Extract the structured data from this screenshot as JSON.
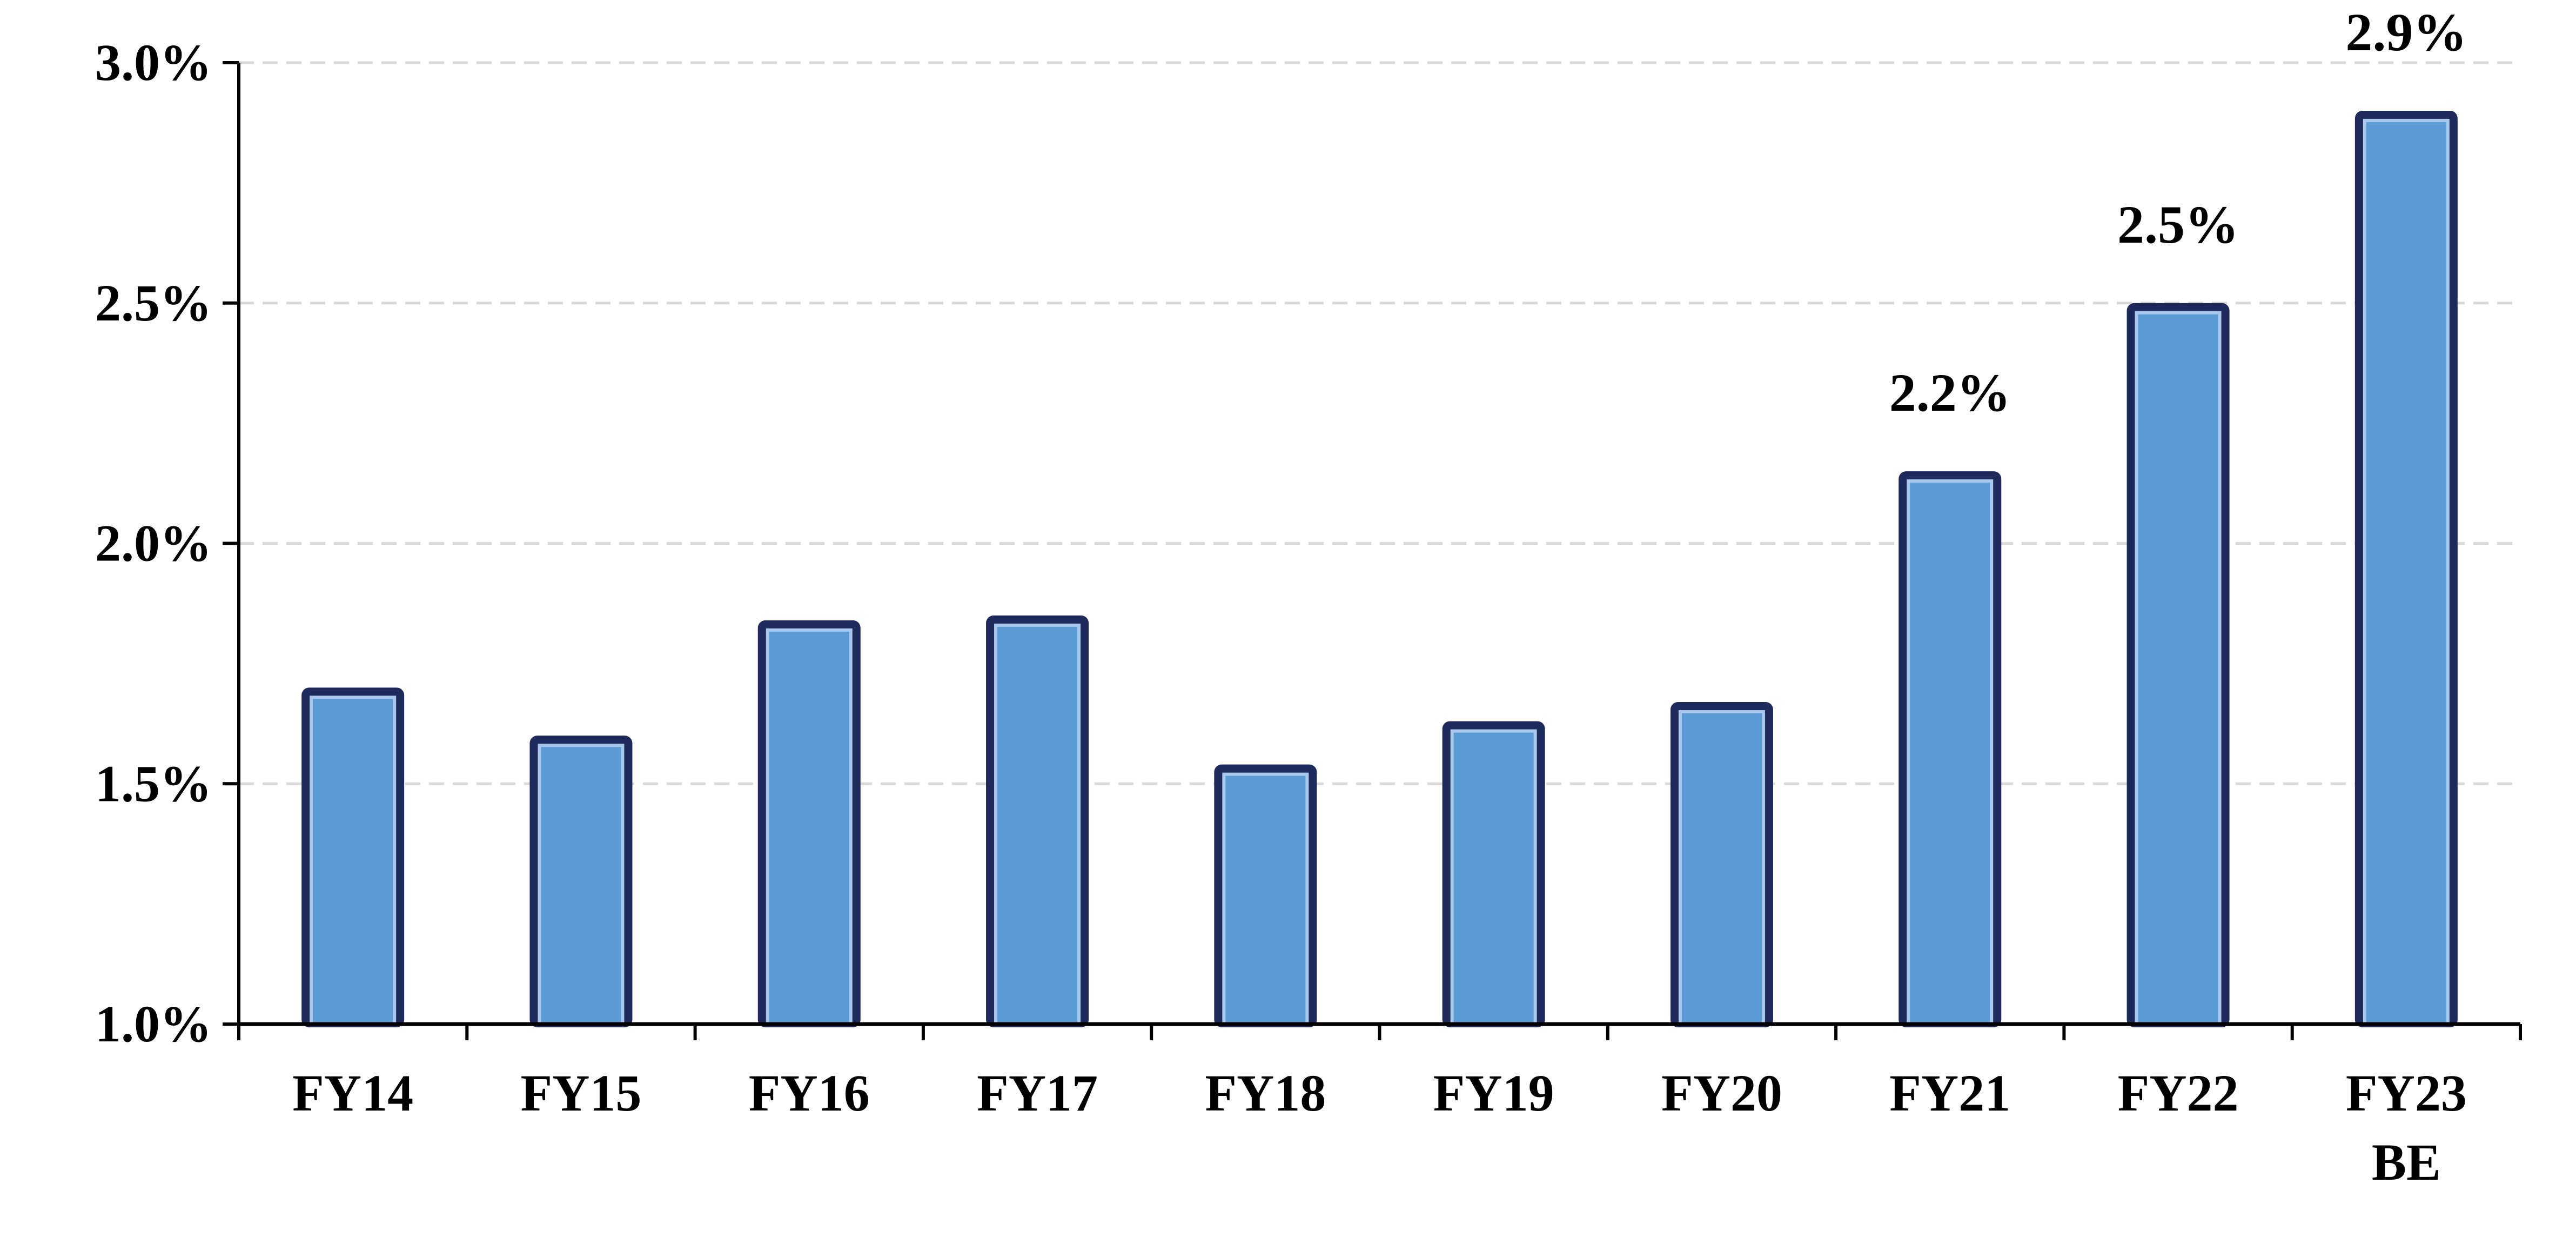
{
  "chart_data": {
    "type": "bar",
    "categories": [
      "FY14",
      "FY15",
      "FY16",
      "FY17",
      "FY18",
      "FY19",
      "FY20",
      "FY21",
      "FY22",
      "FY23 BE"
    ],
    "category_lines": [
      [
        "FY14"
      ],
      [
        "FY15"
      ],
      [
        "FY16"
      ],
      [
        "FY17"
      ],
      [
        "FY18"
      ],
      [
        "FY19"
      ],
      [
        "FY20"
      ],
      [
        "FY21"
      ],
      [
        "FY22"
      ],
      [
        "FY23",
        "BE"
      ]
    ],
    "values": [
      1.7,
      1.6,
      1.84,
      1.85,
      1.54,
      1.63,
      1.67,
      2.15,
      2.5,
      2.9
    ],
    "data_labels": [
      "",
      "",
      "",
      "",
      "",
      "",
      "",
      "2.2%",
      "2.5%",
      "2.9%"
    ],
    "title": "",
    "xlabel": "",
    "ylabel": "",
    "ylim": [
      1.0,
      3.0
    ],
    "yticks": [
      1.0,
      1.5,
      2.0,
      2.5,
      3.0
    ],
    "ytick_labels": [
      "1.0%",
      "1.5%",
      "2.0%",
      "2.5%",
      "3.0%"
    ],
    "grid": true,
    "legend": "none",
    "colors": {
      "bar_fill": "#5b9bd5",
      "bar_outline": "#1f2a5c",
      "bar_inner_line": "#a9c8ec",
      "gridline": "#d9d9d9",
      "axis": "#000000"
    }
  }
}
